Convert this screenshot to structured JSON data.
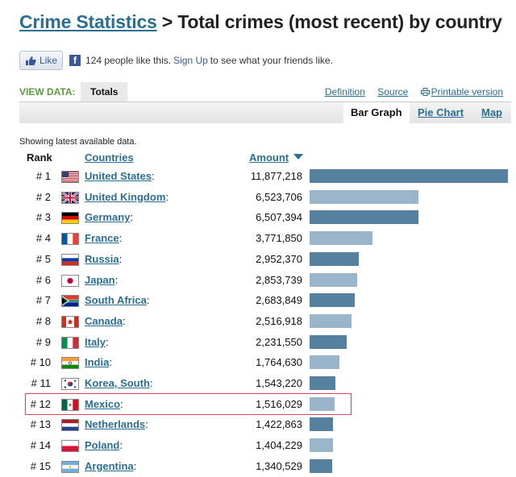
{
  "header": {
    "link": "Crime Statistics",
    "rest": " > Total crimes (most recent) by country"
  },
  "facebook": {
    "like_label": "Like",
    "fb_glyph": "f",
    "count_text": "124 people like this.",
    "signup": "Sign Up",
    "suffix": "to see what your friends like."
  },
  "view": {
    "label": "VIEW DATA:",
    "tab": "Totals",
    "links": [
      "Definition",
      "Source",
      "Printable version"
    ]
  },
  "graph_tabs": [
    "Bar Graph",
    "Pie Chart",
    "Map"
  ],
  "showing": "Showing latest available data.",
  "table": {
    "col_rank": "Rank",
    "col_country": "Countries",
    "col_amount": "Amount",
    "bar_color_dark": "#55809e",
    "bar_color_light": "#9ab5c9",
    "highlight_color": "#d9455a",
    "rows": [
      {
        "rank": "# 1",
        "country": "United States",
        "amount": "11,877,218",
        "value": 11877218,
        "flag": "us-flag-icon"
      },
      {
        "rank": "# 2",
        "country": "United Kingdom",
        "amount": "6,523,706",
        "value": 6523706,
        "flag": "uk-flag-icon"
      },
      {
        "rank": "# 3",
        "country": "Germany",
        "amount": "6,507,394",
        "value": 6507394,
        "flag": "germany-flag-icon"
      },
      {
        "rank": "# 4",
        "country": "France",
        "amount": "3,771,850",
        "value": 3771850,
        "flag": "france-flag-icon"
      },
      {
        "rank": "# 5",
        "country": "Russia",
        "amount": "2,952,370",
        "value": 2952370,
        "flag": "russia-flag-icon"
      },
      {
        "rank": "# 6",
        "country": "Japan",
        "amount": "2,853,739",
        "value": 2853739,
        "flag": "japan-flag-icon"
      },
      {
        "rank": "# 7",
        "country": "South Africa",
        "amount": "2,683,849",
        "value": 2683849,
        "flag": "south-africa-flag-icon"
      },
      {
        "rank": "# 8",
        "country": "Canada",
        "amount": "2,516,918",
        "value": 2516918,
        "flag": "canada-flag-icon"
      },
      {
        "rank": "# 9",
        "country": "Italy",
        "amount": "2,231,550",
        "value": 2231550,
        "flag": "italy-flag-icon"
      },
      {
        "rank": "# 10",
        "country": "India",
        "amount": "1,764,630",
        "value": 1764630,
        "flag": "india-flag-icon"
      },
      {
        "rank": "# 11",
        "country": "Korea, South",
        "amount": "1,543,220",
        "value": 1543220,
        "flag": "south-korea-flag-icon"
      },
      {
        "rank": "# 12",
        "country": "Mexico",
        "amount": "1,516,029",
        "value": 1516029,
        "flag": "mexico-flag-icon"
      },
      {
        "rank": "# 13",
        "country": "Netherlands",
        "amount": "1,422,863",
        "value": 1422863,
        "flag": "netherlands-flag-icon"
      },
      {
        "rank": "# 14",
        "country": "Poland",
        "amount": "1,404,229",
        "value": 1404229,
        "flag": "poland-flag-icon"
      },
      {
        "rank": "# 15",
        "country": "Argentina",
        "amount": "1,340,529",
        "value": 1340529,
        "flag": "argentina-flag-icon"
      }
    ]
  }
}
